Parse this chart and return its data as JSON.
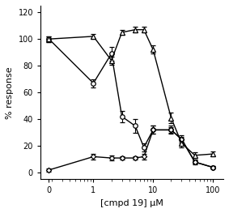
{
  "title": "",
  "xlabel": "[cmpd 19] μM",
  "ylabel": "% response",
  "ylim": [
    -5,
    125
  ],
  "yticks": [
    0,
    20,
    40,
    60,
    80,
    100,
    120
  ],
  "circles_x": [
    0.18,
    1,
    2,
    3,
    5,
    7,
    10,
    20,
    30,
    50,
    100
  ],
  "circles_y": [
    100,
    67,
    89,
    42,
    35,
    19,
    32,
    32,
    25,
    8,
    4
  ],
  "circles_yerr_lo": [
    2,
    3,
    5,
    4,
    5,
    3,
    3,
    3,
    3,
    2,
    1
  ],
  "circles_yerr_hi": [
    2,
    3,
    5,
    4,
    5,
    3,
    3,
    3,
    3,
    2,
    1
  ],
  "diamonds_x": [
    0.18,
    1,
    2,
    3,
    5,
    7,
    10,
    20,
    30,
    50,
    100
  ],
  "diamonds_y": [
    2,
    12,
    11,
    11,
    11,
    12,
    32,
    32,
    25,
    8,
    4
  ],
  "diamonds_yerr_lo": [
    1,
    2,
    2,
    1,
    1,
    2,
    3,
    2,
    2,
    1,
    1
  ],
  "diamonds_yerr_hi": [
    1,
    2,
    2,
    1,
    1,
    2,
    3,
    2,
    2,
    1,
    1
  ],
  "triangles_x": [
    0.18,
    1,
    2,
    3,
    5,
    7,
    10,
    20,
    30,
    50,
    100
  ],
  "triangles_y": [
    100,
    102,
    84,
    105,
    107,
    107,
    92,
    41,
    22,
    13,
    14
  ],
  "triangles_yerr_lo": [
    2,
    2,
    3,
    2,
    2,
    2,
    3,
    4,
    3,
    2,
    2
  ],
  "triangles_yerr_hi": [
    2,
    2,
    3,
    2,
    2,
    2,
    3,
    4,
    3,
    2,
    2
  ],
  "xtick_positions": [
    0.18,
    1,
    10,
    100
  ],
  "xtick_labels": [
    "0",
    "1",
    "10",
    "100"
  ],
  "line_color": "#000000",
  "marker_size": 4,
  "linewidth": 1.0,
  "capsize": 2,
  "elinewidth": 0.8,
  "background_color": "#ffffff"
}
